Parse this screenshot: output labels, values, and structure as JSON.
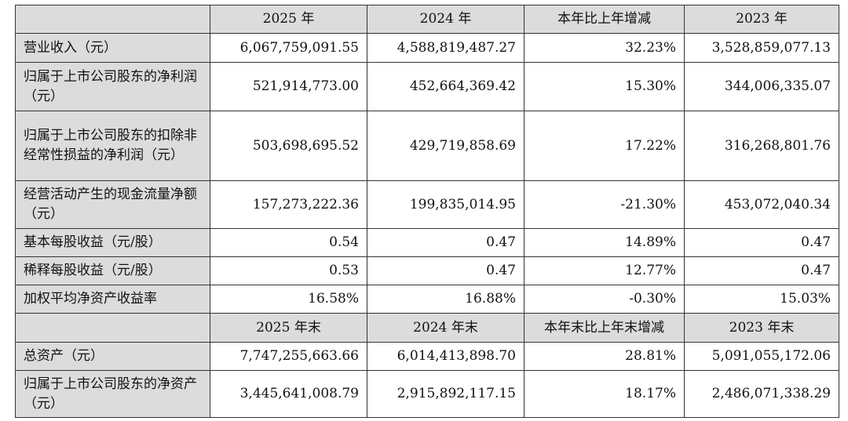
{
  "header": {
    "top": [
      "",
      "2025 年",
      "2024 年",
      "本年比上年增减",
      "2023 年"
    ],
    "bottom": [
      "",
      "2025 年末",
      "2024 年末",
      "本年末比上年末增减",
      "2023 年末"
    ]
  },
  "rows_top": [
    {
      "label": "营业收入（元）",
      "v2025": "6,067,759,091.55",
      "v2024": "4,588,819,487.27",
      "change": "32.23%",
      "v2023": "3,528,859,077.13"
    },
    {
      "label": "归属于上市公司股东的净利润（元）",
      "v2025": "521,914,773.00",
      "v2024": "452,664,369.42",
      "change": "15.30%",
      "v2023": "344,006,335.07"
    },
    {
      "label": "归属于上市公司股东的扣除非经常性损益的净利润（元）",
      "v2025": "503,698,695.52",
      "v2024": "429,719,858.69",
      "change": "17.22%",
      "v2023": "316,268,801.76"
    },
    {
      "label": "经营活动产生的现金流量净额（元）",
      "v2025": "157,273,222.36",
      "v2024": "199,835,014.95",
      "change": "-21.30%",
      "v2023": "453,072,040.34"
    },
    {
      "label": "基本每股收益（元/股）",
      "v2025": "0.54",
      "v2024": "0.47",
      "change": "14.89%",
      "v2023": "0.47"
    },
    {
      "label": "稀释每股收益（元/股）",
      "v2025": "0.53",
      "v2024": "0.47",
      "change": "12.77%",
      "v2023": "0.47"
    },
    {
      "label": "加权平均净资产收益率",
      "v2025": "16.58%",
      "v2024": "16.88%",
      "change": "-0.30%",
      "v2023": "15.03%"
    }
  ],
  "rows_bottom": [
    {
      "label": "总资产（元）",
      "v2025": "7,747,255,663.66",
      "v2024": "6,014,413,898.70",
      "change": "28.81%",
      "v2023": "5,091,055,172.06"
    },
    {
      "label": "归属于上市公司股东的净资产（元）",
      "v2025": "3,445,641,008.79",
      "v2024": "2,915,892,117.15",
      "change": "18.17%",
      "v2023": "2,486,071,338.29"
    }
  ]
}
